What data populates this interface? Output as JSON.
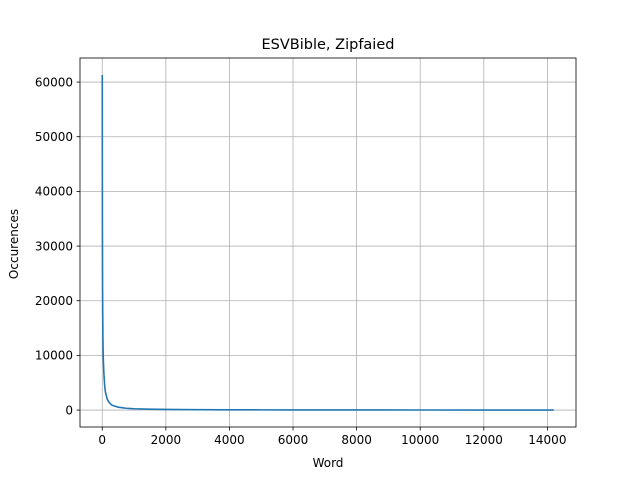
{
  "chart_data": {
    "type": "line",
    "title": "ESVBible, Zipfaied",
    "xlabel": "Word",
    "ylabel": "Occurences",
    "xlim": [
      -700,
      14900
    ],
    "ylim": [
      -3100,
      64400
    ],
    "xticks": [
      0,
      2000,
      4000,
      6000,
      8000,
      10000,
      12000,
      14000
    ],
    "yticks": [
      0,
      10000,
      20000,
      30000,
      40000,
      50000,
      60000
    ],
    "grid": true,
    "series": [
      {
        "color": "#1f77b4",
        "x": [
          0,
          5,
          10,
          20,
          30,
          50,
          75,
          100,
          150,
          200,
          300,
          500,
          750,
          1000,
          1500,
          2000,
          3000,
          4000,
          5000,
          6000,
          8000,
          10000,
          12000,
          14200
        ],
        "y": [
          61300,
          33000,
          22000,
          13500,
          9800,
          6800,
          4500,
          3300,
          2100,
          1500,
          900,
          520,
          330,
          240,
          150,
          105,
          65,
          45,
          33,
          25,
          16,
          10,
          6,
          1
        ]
      }
    ]
  }
}
